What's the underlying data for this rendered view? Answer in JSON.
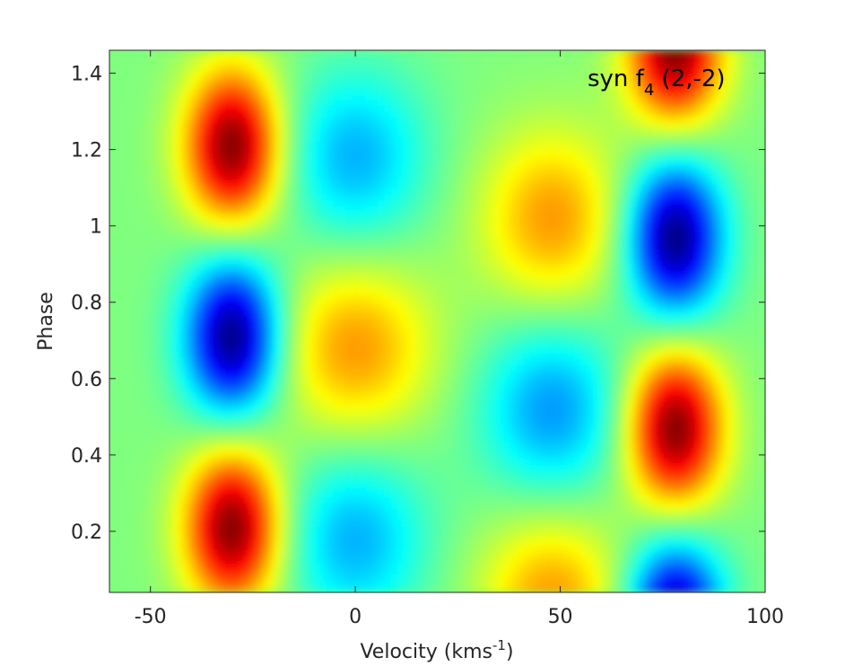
{
  "chart_data": {
    "type": "heatmap",
    "annotation": {
      "main": "syn f",
      "subscript": "4",
      "suffix": " (2,-2)"
    },
    "xlabel": {
      "main": "Velocity (kms",
      "superscript": "-1",
      "suffix": ")"
    },
    "ylabel": "Phase",
    "xlim": [
      -60,
      100
    ],
    "ylim": [
      0.04,
      1.46
    ],
    "x_ticks": [
      -50,
      0,
      50,
      100
    ],
    "y_ticks": [
      0.2,
      0.4,
      0.6,
      0.8,
      1,
      1.2,
      1.4
    ],
    "x_tick_labels": [
      "-50",
      "0",
      "50",
      "100"
    ],
    "y_tick_labels": [
      "0.2",
      "0.4",
      "0.6",
      "0.8",
      "1",
      "1.2",
      "1.4"
    ],
    "colormap": "jet",
    "grid": false,
    "features": [
      {
        "v": -30,
        "phase": 0.21,
        "amp": 1.0,
        "sv": 8,
        "sp": 0.14
      },
      {
        "v": -30,
        "phase": 1.21,
        "amp": 1.0,
        "sv": 8,
        "sp": 0.14
      },
      {
        "v": -30,
        "phase": 0.71,
        "amp": -1.0,
        "sv": 8,
        "sp": 0.14
      },
      {
        "v": 78,
        "phase": 0.47,
        "amp": 1.0,
        "sv": 8,
        "sp": 0.14
      },
      {
        "v": 78,
        "phase": 1.47,
        "amp": 1.0,
        "sv": 8,
        "sp": 0.14
      },
      {
        "v": 78,
        "phase": 0.97,
        "amp": -1.0,
        "sv": 8,
        "sp": 0.14
      },
      {
        "v": 78,
        "phase": -0.03,
        "amp": -1.0,
        "sv": 8,
        "sp": 0.14
      },
      {
        "v": 0,
        "phase": 0.68,
        "amp": 0.45,
        "sv": 13,
        "sp": 0.16
      },
      {
        "v": 0,
        "phase": 0.18,
        "amp": -0.4,
        "sv": 12,
        "sp": 0.16
      },
      {
        "v": 0,
        "phase": 1.18,
        "amp": -0.4,
        "sv": 12,
        "sp": 0.16
      },
      {
        "v": 48,
        "phase": 0.52,
        "amp": -0.45,
        "sv": 12,
        "sp": 0.16
      },
      {
        "v": 48,
        "phase": 1.02,
        "amp": 0.45,
        "sv": 12,
        "sp": 0.16
      },
      {
        "v": 48,
        "phase": 0.02,
        "amp": 0.45,
        "sv": 12,
        "sp": 0.16
      }
    ]
  }
}
